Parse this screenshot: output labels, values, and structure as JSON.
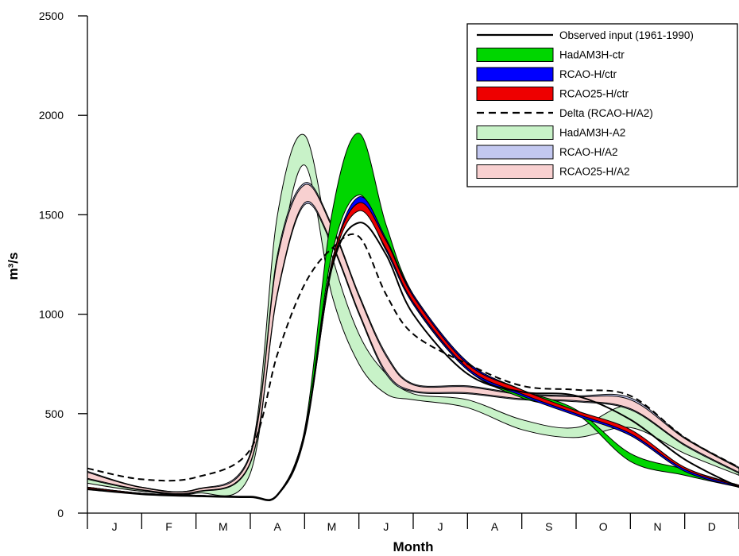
{
  "chart_data": {
    "type": "line",
    "title": "",
    "xlabel": "Month",
    "ylabel": "m³/s",
    "ylim": [
      0,
      2500
    ],
    "yticks": [
      0,
      500,
      1000,
      1500,
      2000,
      2500
    ],
    "ytick_labels": [
      "0",
      "500",
      "1000",
      "1500",
      "2000",
      "2500"
    ],
    "categories": [
      "J",
      "F",
      "M",
      "A",
      "M",
      "J",
      "J",
      "A",
      "S",
      "O",
      "N",
      "D"
    ],
    "x_units": "month (0 = start of January, 12 = end of December)",
    "x": [
      0,
      1,
      2,
      3,
      3.5,
      4,
      4.5,
      5,
      5.5,
      6,
      7,
      8,
      9,
      10,
      11,
      12
    ],
    "legend_position": "top-right",
    "grid": false,
    "series": [
      {
        "name": "Observed input (1961-1990)",
        "style": "line",
        "color": "#000000",
        "values": [
          120,
          95,
          85,
          80,
          90,
          400,
          1230,
          1460,
          1300,
          1000,
          700,
          610,
          590,
          470,
          270,
          130
        ]
      },
      {
        "name": "HadAM3H-ctr",
        "style": "band",
        "color": "#00d600",
        "lower": [
          120,
          95,
          85,
          80,
          90,
          400,
          1300,
          1600,
          1350,
          1050,
          720,
          580,
          500,
          260,
          190,
          130
        ],
        "upper": [
          130,
          100,
          90,
          80,
          95,
          420,
          1500,
          1910,
          1450,
          1100,
          760,
          620,
          520,
          300,
          220,
          140
        ]
      },
      {
        "name": "RCAO-H/ctr",
        "style": "band",
        "color": "#0000ff",
        "lower": [
          120,
          95,
          85,
          80,
          90,
          380,
          1230,
          1540,
          1320,
          1050,
          720,
          590,
          490,
          390,
          210,
          130
        ],
        "upper": [
          130,
          100,
          90,
          80,
          95,
          410,
          1260,
          1590,
          1380,
          1100,
          760,
          620,
          510,
          410,
          230,
          140
        ]
      },
      {
        "name": "RCAO25-H/ctr",
        "style": "band",
        "color": "#ee0000",
        "lower": [
          125,
          95,
          85,
          80,
          90,
          390,
          1240,
          1520,
          1330,
          1060,
          730,
          600,
          500,
          400,
          220,
          135
        ],
        "upper": [
          130,
          100,
          90,
          85,
          95,
          410,
          1260,
          1560,
          1370,
          1090,
          750,
          620,
          515,
          420,
          230,
          140
        ]
      },
      {
        "name": "Delta (RCAO-H/A2)",
        "style": "dashed",
        "color": "#000000",
        "values": [
          225,
          170,
          180,
          320,
          800,
          1150,
          1330,
          1390,
          1100,
          900,
          750,
          640,
          620,
          590,
          380,
          230
        ]
      },
      {
        "name": "HadAM3H-A2",
        "style": "band",
        "color": "#c8f2c8",
        "lower": [
          150,
          110,
          100,
          200,
          1200,
          1750,
          1100,
          750,
          600,
          570,
          530,
          420,
          380,
          430,
          300,
          190
        ],
        "upper": [
          200,
          130,
          120,
          300,
          1500,
          1900,
          1300,
          900,
          700,
          600,
          570,
          470,
          430,
          540,
          360,
          220
        ]
      },
      {
        "name": "RCAO-H/A2",
        "style": "band",
        "color": "#c3c8f0",
        "lower": [
          170,
          115,
          105,
          250,
          1100,
          1550,
          1350,
          1000,
          700,
          610,
          600,
          570,
          560,
          520,
          340,
          200
        ],
        "upper": [
          210,
          130,
          120,
          300,
          1300,
          1660,
          1450,
          1100,
          800,
          650,
          640,
          600,
          590,
          580,
          380,
          230
        ]
      },
      {
        "name": "RCAO25-H/A2",
        "style": "band",
        "color": "#f8d0d0",
        "lower": [
          175,
          118,
          108,
          255,
          1110,
          1560,
          1360,
          1010,
          710,
          615,
          605,
          575,
          565,
          525,
          345,
          205
        ],
        "upper": [
          205,
          128,
          118,
          290,
          1280,
          1650,
          1440,
          1090,
          790,
          645,
          635,
          595,
          585,
          570,
          375,
          225
        ]
      }
    ]
  }
}
